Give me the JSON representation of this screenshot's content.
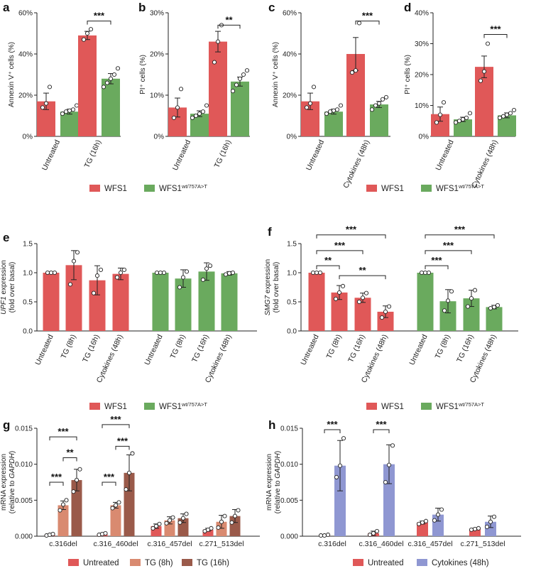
{
  "colors": {
    "wfs1": "#e05858",
    "mutant": "#6aaa5e",
    "untreated": "#e05858",
    "tg8": "#d98a70",
    "tg16": "#9a5a4a",
    "cytokines": "#8f97d2"
  },
  "chart_data": [
    {
      "id": "a",
      "letter": "a",
      "type": "bar",
      "ylabel": "Annexin V⁺ cells (%)",
      "ylim": [
        0,
        60
      ],
      "yticks": [
        "0%",
        "20%",
        "40%",
        "60%"
      ],
      "categories": [
        "Untreated",
        "TG (16h)"
      ],
      "series": [
        {
          "name": "WFS1",
          "values": [
            17,
            49
          ],
          "errors": [
            4,
            2
          ],
          "points": [
            [
              14,
              16,
              24
            ],
            [
              47,
              50,
              52
            ]
          ]
        },
        {
          "name": "WFS1 wt/757A>T",
          "values": [
            12,
            28
          ],
          "errors": [
            1.2,
            2.5
          ],
          "points": [
            [
              11,
              12,
              12.5,
              13,
              15
            ],
            [
              24,
              26,
              28,
              30,
              33
            ]
          ]
        }
      ],
      "significance": [
        {
          "label": "***",
          "from": [
            1,
            0
          ],
          "to": [
            1,
            1
          ],
          "y": 56
        }
      ]
    },
    {
      "id": "b",
      "letter": "b",
      "type": "bar",
      "ylabel": "PI⁺ cells (%)",
      "ylim": [
        0,
        30
      ],
      "yticks": [
        "0%",
        "10%",
        "20%",
        "30%"
      ],
      "categories": [
        "Untreated",
        "TG (16h)"
      ],
      "series": [
        {
          "name": "WFS1",
          "values": [
            7,
            23
          ],
          "errors": [
            2.3,
            2.5
          ],
          "points": [
            [
              4.5,
              7,
              11.5
            ],
            [
              18,
              23,
              27
            ]
          ]
        },
        {
          "name": "WFS1 wt/757A>T",
          "values": [
            5.5,
            13.3
          ],
          "errors": [
            0.7,
            1.1
          ],
          "points": [
            [
              4.5,
              5,
              5.5,
              6,
              7.5
            ],
            [
              11,
              12.5,
              14,
              15,
              16
            ]
          ]
        }
      ],
      "significance": [
        {
          "label": "**",
          "from": [
            1,
            0
          ],
          "to": [
            1,
            1
          ],
          "y": 27
        }
      ]
    },
    {
      "id": "c",
      "letter": "c",
      "type": "bar",
      "ylabel": "Annexin V⁺ cells (%)",
      "ylim": [
        0,
        60
      ],
      "yticks": [
        "0%",
        "20%",
        "40%",
        "60%"
      ],
      "categories": [
        "Untreated",
        "Cytokines (48h)"
      ],
      "series": [
        {
          "name": "WFS1",
          "values": [
            17,
            40
          ],
          "errors": [
            4,
            8
          ],
          "points": [
            [
              14,
              16,
              24
            ],
            [
              31,
              32,
              55
            ]
          ]
        },
        {
          "name": "WFS1 wt/757A>T",
          "values": [
            12,
            15.5
          ],
          "errors": [
            1.2,
            1.5
          ],
          "points": [
            [
              11,
              12,
              12.5,
              13,
              15
            ],
            [
              13,
              15,
              16,
              18,
              19
            ]
          ]
        }
      ],
      "significance": [
        {
          "label": "***",
          "from": [
            1,
            0
          ],
          "to": [
            1,
            1
          ],
          "y": 56
        }
      ]
    },
    {
      "id": "d",
      "letter": "d",
      "type": "bar",
      "ylabel": "PI⁺ cells (%)",
      "ylim": [
        0,
        40
      ],
      "yticks": [
        "0%",
        "10%",
        "20%",
        "30%",
        "40%"
      ],
      "categories": [
        "Untreated",
        "Cytokines (48h)"
      ],
      "series": [
        {
          "name": "WFS1",
          "values": [
            7.2,
            22.5
          ],
          "errors": [
            2.3,
            3.5
          ],
          "points": [
            [
              4.5,
              7,
              11
            ],
            [
              18,
              21,
              30
            ]
          ]
        },
        {
          "name": "WFS1 wt/757A>T",
          "values": [
            5.5,
            6.8
          ],
          "errors": [
            0.7,
            0.8
          ],
          "points": [
            [
              4.5,
              5,
              5.5,
              6,
              7.5
            ],
            [
              6,
              6.5,
              7,
              7.5,
              8.5
            ]
          ]
        }
      ],
      "significance": [
        {
          "label": "***",
          "from": [
            1,
            0
          ],
          "to": [
            1,
            1
          ],
          "y": 33
        }
      ]
    },
    {
      "id": "e",
      "letter": "e",
      "type": "bar",
      "ylabel": "UPF1 expression",
      "ylabel2": "(fold over basal)",
      "ylabel_italic": "UPF1",
      "ylim": [
        0,
        1.5
      ],
      "yticks": [
        "0.0",
        "0.5",
        "1.0",
        "1.5"
      ],
      "groups": [
        {
          "name": "WFS1",
          "categories": [
            "Untreated",
            "TG (8h)",
            "TG (16h)",
            "Cytokines (48h)"
          ],
          "values": [
            1.0,
            1.13,
            0.87,
            0.98
          ],
          "errors": [
            0,
            0.25,
            0.25,
            0.1
          ],
          "points": [
            [
              1,
              1,
              1
            ],
            [
              0.8,
              1.2,
              1.35
            ],
            [
              0.65,
              0.95,
              1.05
            ],
            [
              0.92,
              1.0,
              1.05
            ]
          ]
        },
        {
          "name": "WFS1 wt/757A>T",
          "categories": [
            "Untreated",
            "TG (8h)",
            "TG (16h)",
            "Cytokines (48h)"
          ],
          "values": [
            1.0,
            0.9,
            1.02,
            0.99
          ],
          "errors": [
            0,
            0.15,
            0.15,
            0.03
          ],
          "points": [
            [
              1,
              1,
              1
            ],
            [
              0.75,
              0.92,
              1.02
            ],
            [
              0.88,
              1.07,
              1.12
            ],
            [
              0.97,
              0.99,
              1.0
            ]
          ]
        }
      ],
      "significance": []
    },
    {
      "id": "f",
      "letter": "f",
      "type": "bar",
      "ylabel": "SMG7 expression",
      "ylabel2": "(fold over basal)",
      "ylabel_italic": "SMG7",
      "ylim": [
        0,
        1.5
      ],
      "yticks": [
        "0.0",
        "0.5",
        "1.0",
        "1.5"
      ],
      "groups": [
        {
          "name": "WFS1",
          "categories": [
            "Untreated",
            "TG (8h)",
            "TG (16h)",
            "Cytokines (48h)"
          ],
          "values": [
            1.0,
            0.66,
            0.57,
            0.33
          ],
          "errors": [
            0,
            0.12,
            0.08,
            0.1
          ],
          "points": [
            [
              1,
              1,
              1
            ],
            [
              0.55,
              0.66,
              0.77
            ],
            [
              0.5,
              0.57,
              0.65
            ],
            [
              0.23,
              0.33,
              0.42
            ]
          ]
        },
        {
          "name": "WFS1 wt/757A>T",
          "categories": [
            "Untreated",
            "TG (8h)",
            "TG (16h)",
            "Cytokines (48h)"
          ],
          "values": [
            1.0,
            0.51,
            0.56,
            0.41
          ],
          "errors": [
            0,
            0.2,
            0.14,
            0.03
          ],
          "points": [
            [
              1,
              1,
              1
            ],
            [
              0.35,
              0.52,
              0.68
            ],
            [
              0.42,
              0.56,
              0.7
            ],
            [
              0.39,
              0.41,
              0.44
            ]
          ]
        }
      ],
      "significance": [
        {
          "label": "***",
          "group": 0,
          "from": 0,
          "to": 3,
          "y": 1.65
        },
        {
          "label": "***",
          "group": 0,
          "from": 0,
          "to": 2,
          "y": 1.38
        },
        {
          "label": "**",
          "group": 0,
          "from": 0,
          "to": 1,
          "y": 1.12
        },
        {
          "label": "**",
          "group": 0,
          "from": 1,
          "to": 3,
          "y": 0.95
        },
        {
          "label": "***",
          "group": 1,
          "from": 0,
          "to": 3,
          "y": 1.65
        },
        {
          "label": "***",
          "group": 1,
          "from": 0,
          "to": 2,
          "y": 1.38
        },
        {
          "label": "***",
          "group": 1,
          "from": 0,
          "to": 1,
          "y": 1.12
        }
      ]
    },
    {
      "id": "g",
      "letter": "g",
      "type": "bar",
      "ylabel": "mRNA expression",
      "ylabel2": "(relative to GAPDH)",
      "ylabel2_italic": "GAPDH",
      "ylim": [
        0,
        0.015
      ],
      "yticks": [
        "0.000",
        "0.005",
        "0.010",
        "0.015"
      ],
      "categories": [
        "c.316del",
        "c.316_460del",
        "c.316_457del",
        "c.271_513del"
      ],
      "series": [
        {
          "name": "Untreated",
          "values": [
            0.0002,
            0.0003,
            0.0014,
            0.0009
          ],
          "errors": [
            0.0001,
            0.0001,
            0.0003,
            0.0002
          ],
          "points": [
            [
              0.0001,
              0.0002,
              0.0003
            ],
            [
              0.0002,
              0.0003,
              0.0004
            ],
            [
              0.0011,
              0.0014,
              0.0017
            ],
            [
              0.0007,
              0.0009,
              0.0011
            ]
          ]
        },
        {
          "name": "TG (8h)",
          "values": [
            0.0043,
            0.0043,
            0.0022,
            0.002
          ],
          "errors": [
            0.0006,
            0.0004,
            0.0005,
            0.0009
          ],
          "points": [
            [
              0.0036,
              0.0044,
              0.005
            ],
            [
              0.0039,
              0.0043,
              0.0047
            ],
            [
              0.0018,
              0.0022,
              0.0026
            ],
            [
              0.0012,
              0.002,
              0.0028
            ]
          ]
        },
        {
          "name": "TG (16h)",
          "values": [
            0.0078,
            0.0088,
            0.0025,
            0.0028
          ],
          "errors": [
            0.0015,
            0.0025,
            0.0006,
            0.0009
          ],
          "points": [
            [
              0.0062,
              0.0078,
              0.0093
            ],
            [
              0.0065,
              0.0088,
              0.0115
            ],
            [
              0.0019,
              0.0025,
              0.0031
            ],
            [
              0.0019,
              0.0028,
              0.0036
            ]
          ]
        }
      ],
      "significance": [
        {
          "label": "***",
          "cat": 0,
          "from": 0,
          "to": 2,
          "y": 0.0138
        },
        {
          "label": "**",
          "cat": 0,
          "from": 1,
          "to": 2,
          "y": 0.0109
        },
        {
          "label": "***",
          "cat": 0,
          "from": 0,
          "to": 1,
          "y": 0.0075
        },
        {
          "label": "***",
          "cat": 1,
          "from": 0,
          "to": 2,
          "y": 0.0155
        },
        {
          "label": "***",
          "cat": 1,
          "from": 1,
          "to": 2,
          "y": 0.0125
        },
        {
          "label": "***",
          "cat": 1,
          "from": 0,
          "to": 1,
          "y": 0.0075
        }
      ]
    },
    {
      "id": "h",
      "letter": "h",
      "type": "bar",
      "ylabel": "mRNA expression",
      "ylabel2": "(relative to GAPDH)",
      "ylabel2_italic": "GAPDH",
      "ylim": [
        0,
        0.015
      ],
      "yticks": [
        "0.000",
        "0.005",
        "0.010",
        "0.015"
      ],
      "categories": [
        "c.316del",
        "c.316_460del",
        "c.316_457del",
        "c.271_513del"
      ],
      "series": [
        {
          "name": "Untreated",
          "values": [
            0.0001,
            0.0004,
            0.0019,
            0.001
          ],
          "errors": [
            0.0001,
            0.0003,
            0.0002,
            0.0001
          ],
          "points": [
            [
              0.0001,
              0.0001,
              0.0002
            ],
            [
              0.0002,
              0.0004,
              0.0007
            ],
            [
              0.0017,
              0.0019,
              0.0021
            ],
            [
              0.0009,
              0.001,
              0.0011
            ]
          ]
        },
        {
          "name": "Cytokines (48h)",
          "values": [
            0.0098,
            0.01,
            0.003,
            0.002
          ],
          "errors": [
            0.0035,
            0.0027,
            0.0009,
            0.0008
          ],
          "points": [
            [
              0.0082,
              0.0098,
              0.0136
            ],
            [
              0.0075,
              0.0099,
              0.0126
            ],
            [
              0.0022,
              0.003,
              0.0037
            ],
            [
              0.0013,
              0.002,
              0.0027
            ]
          ]
        }
      ],
      "significance": [
        {
          "label": "***",
          "cat": 0,
          "from": 0,
          "to": 1,
          "y": 0.0148
        },
        {
          "label": "***",
          "cat": 1,
          "from": 0,
          "to": 1,
          "y": 0.0148
        }
      ]
    }
  ],
  "legends": {
    "row1_left": [
      {
        "label": "WFS1",
        "sup": "",
        "color_key": "wfs1"
      },
      {
        "label": "WFS1",
        "sup": "wt/757A>T",
        "color_key": "mutant"
      }
    ],
    "row1_right": [
      {
        "label": "WFS1",
        "sup": "",
        "color_key": "wfs1"
      },
      {
        "label": "WFS1",
        "sup": "wt/757A>T",
        "color_key": "mutant"
      }
    ],
    "row2_left": [
      {
        "label": "WFS1",
        "sup": "",
        "color_key": "wfs1"
      },
      {
        "label": "WFS1",
        "sup": "wt/757A>T",
        "color_key": "mutant"
      }
    ],
    "row2_right": [
      {
        "label": "WFS1",
        "sup": "",
        "color_key": "wfs1"
      },
      {
        "label": "WFS1",
        "sup": "wt/757A>T",
        "color_key": "mutant"
      }
    ],
    "row3_left": [
      {
        "label": "Untreated",
        "sup": "",
        "color_key": "untreated"
      },
      {
        "label": "TG (8h)",
        "sup": "",
        "color_key": "tg8"
      },
      {
        "label": "TG (16h)",
        "sup": "",
        "color_key": "tg16"
      }
    ],
    "row3_right": [
      {
        "label": "Untreated",
        "sup": "",
        "color_key": "untreated"
      },
      {
        "label": "Cytokines (48h)",
        "sup": "",
        "color_key": "cytokines"
      }
    ]
  }
}
